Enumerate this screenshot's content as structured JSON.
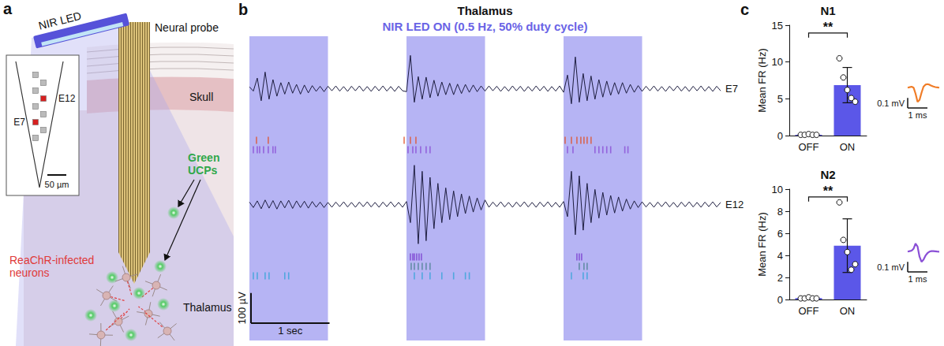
{
  "panel_a": {
    "letter": "a",
    "led": "NIR LED",
    "probe": "Neural probe",
    "skull": "Skull",
    "particles": "Green UCPs",
    "neurons": "ReaChR-infected neurons",
    "region": "Thalamus",
    "inset": {
      "upper_electrode": "E12",
      "lower_electrode": "E7",
      "scale_bar": "50 µm"
    }
  },
  "chart_data": [
    {
      "type": "line",
      "letter": "b",
      "title": "Thalamus",
      "subtitle": "NIR LED ON (0.5 Hz, 50% duty cycle)",
      "xlim": [
        0,
        6
      ],
      "ylim": [
        -150,
        150
      ],
      "tick_labels": false,
      "x": [
        0,
        0.05,
        0.1,
        0.15,
        0.2,
        0.25,
        0.3,
        0.35,
        0.4,
        0.45,
        0.5,
        0.55,
        0.6,
        0.65,
        0.7,
        0.75,
        0.8,
        0.85,
        0.9,
        0.95,
        1,
        1.05,
        1.1,
        1.15,
        1.2,
        1.25,
        1.3,
        1.35,
        1.4,
        1.45,
        1.5,
        1.55,
        1.6,
        1.65,
        1.7,
        1.75,
        1.8,
        1.85,
        1.9,
        1.95,
        2,
        2.05,
        2.1,
        2.15,
        2.2,
        2.25,
        2.3,
        2.35,
        2.4,
        2.45,
        2.5,
        2.55,
        2.6,
        2.65,
        2.7,
        2.75,
        2.8,
        2.85,
        2.9,
        2.95,
        3,
        3.05,
        3.1,
        3.15,
        3.2,
        3.25,
        3.3,
        3.35,
        3.4,
        3.45,
        3.5,
        3.55,
        3.6,
        3.65,
        3.7,
        3.75,
        3.8,
        3.85,
        3.9,
        3.95,
        4,
        4.05,
        4.1,
        4.15,
        4.2,
        4.25,
        4.3,
        4.35,
        4.4,
        4.45,
        4.5,
        4.55,
        4.6,
        4.65,
        4.7,
        4.75,
        4.8,
        4.85,
        4.9,
        4.95,
        5,
        5.05,
        5.1,
        5.15,
        5.2,
        5.25,
        5.3,
        5.35,
        5.4,
        5.45,
        5.5,
        5.55,
        5.6,
        5.65,
        5.7,
        5.75,
        5.8,
        5.85,
        5.9,
        5.95,
        6
      ],
      "series": [
        {
          "name": "E7",
          "color": "#1d1d3f",
          "values": [
            6,
            -8,
            35,
            -40,
            55,
            -35,
            30,
            -25,
            20,
            -18,
            22,
            -15,
            14,
            -18,
            12,
            -14,
            10,
            -9,
            8,
            -10,
            8,
            -7,
            9,
            -8,
            7,
            -9,
            8,
            -7,
            9,
            -8,
            7,
            -9,
            8,
            -7,
            9,
            -8,
            7,
            -9,
            8,
            -7,
            -10,
            110,
            -45,
            40,
            -35,
            38,
            -30,
            28,
            -25,
            22,
            -20,
            18,
            -20,
            15,
            -16,
            14,
            -12,
            12,
            -10,
            9,
            -8,
            9,
            -7,
            8,
            -9,
            7,
            -8,
            9,
            -7,
            8,
            -9,
            7,
            -8,
            9,
            -7,
            8,
            -9,
            7,
            -8,
            9,
            -12,
            45,
            -50,
            105,
            -45,
            50,
            -40,
            42,
            -35,
            30,
            -28,
            25,
            -22,
            20,
            -18,
            20,
            -15,
            14,
            -12,
            10,
            -9,
            8,
            -7,
            9,
            -8,
            7,
            -9,
            8,
            -7,
            9,
            -8,
            7,
            -9,
            8,
            -7,
            9,
            -8,
            7,
            -9,
            8,
            -7
          ]
        },
        {
          "name": "E12",
          "color": "#1d1d3f",
          "values": [
            8,
            -10,
            12,
            -14,
            15,
            -12,
            13,
            -15,
            12,
            -11,
            14,
            -13,
            12,
            -10,
            11,
            -12,
            10,
            -9,
            8,
            -10,
            7,
            -9,
            8,
            -7,
            9,
            -8,
            7,
            -9,
            8,
            -7,
            9,
            -8,
            7,
            -9,
            8,
            -7,
            9,
            -8,
            7,
            -9,
            10,
            -60,
            130,
            -130,
            110,
            -120,
            90,
            -80,
            70,
            -60,
            55,
            -50,
            45,
            -40,
            35,
            -30,
            28,
            -25,
            22,
            -18,
            15,
            -9,
            8,
            -7,
            9,
            -8,
            7,
            -9,
            8,
            -7,
            9,
            -8,
            7,
            -9,
            8,
            -7,
            9,
            -8,
            7,
            -9,
            10,
            -40,
            110,
            -100,
            95,
            -85,
            70,
            -60,
            50,
            -45,
            40,
            -35,
            30,
            -28,
            25,
            -22,
            18,
            -15,
            12,
            -10,
            9,
            -8,
            7,
            -9,
            8,
            -7,
            9,
            -8,
            7,
            -9,
            8,
            -7,
            9,
            -8,
            7,
            -9,
            8,
            -7,
            9,
            -8,
            7
          ]
        }
      ],
      "stimulus_windows": {
        "color": "#b6b4f4",
        "ranges": [
          [
            0,
            1
          ],
          [
            2,
            3
          ],
          [
            4,
            5
          ]
        ]
      },
      "raster": [
        {
          "electrode": "E7",
          "color": "#e0532b",
          "times": [
            0.09,
            0.24,
            1.97,
            2.05,
            2.12,
            4.02,
            4.1,
            4.17,
            4.22,
            4.26,
            4.3,
            4.35
          ]
        },
        {
          "electrode": "E7",
          "color": "#8b4fd6",
          "times": [
            0.05,
            0.1,
            0.13,
            0.18,
            0.24,
            0.3,
            0.33,
            2.02,
            2.08,
            2.12,
            2.18,
            2.25,
            2.3,
            4.05,
            4.12,
            4.4,
            4.45,
            4.5,
            4.55,
            4.6,
            4.78,
            4.82
          ]
        },
        {
          "electrode": "E12",
          "color": "#7b3fd0",
          "times": [
            2.05,
            2.08,
            2.1,
            2.13,
            2.16,
            2.19,
            4.17,
            4.2,
            4.23
          ]
        },
        {
          "electrode": "E12",
          "color": "#4f8293",
          "times": [
            2.06,
            2.1,
            2.15,
            2.2,
            2.25,
            2.3,
            4.2,
            4.26,
            4.3
          ]
        },
        {
          "electrode": "E12",
          "color": "#37a4d8",
          "times": [
            0.05,
            0.1,
            0.2,
            0.25,
            0.45,
            0.5,
            2.1,
            2.2,
            2.3,
            2.45,
            2.6,
            2.75,
            2.8,
            4.1,
            4.25,
            4.3
          ]
        }
      ],
      "scale_bars": {
        "x": {
          "value": 1,
          "label": "1 sec"
        },
        "y": {
          "value": 100,
          "label": "100 µV"
        }
      }
    },
    {
      "type": "bar",
      "letter": "c",
      "title": "N1",
      "categories": [
        "OFF",
        "ON"
      ],
      "values": [
        0.12,
        6.86
      ],
      "errors": [
        0.04,
        2.4
      ],
      "points": [
        [
          0.1,
          0.1,
          0.2,
          0.1,
          0.1
        ],
        [
          10.5,
          7.9,
          6.2,
          5.1,
          4.6
        ]
      ],
      "color": "#5b57e8",
      "y_label": "Mean FR (Hz)",
      "ylim": [
        0,
        15
      ],
      "yticks": [
        0,
        5,
        10,
        15
      ],
      "grid": false,
      "significance": {
        "label": "**",
        "between": [
          "OFF",
          "ON"
        ]
      },
      "waveform": {
        "color": "#f07d28",
        "x": [
          0,
          0.1,
          0.2,
          0.3,
          0.4,
          0.5,
          0.6,
          0.7,
          0.8,
          0.9,
          1,
          1.1,
          1.2,
          1.3,
          1.4,
          1.5,
          1.6
        ],
        "values": [
          0,
          0.005,
          0.01,
          0,
          -0.06,
          -0.14,
          -0.12,
          -0.05,
          0.01,
          0.03,
          0.035,
          0.03,
          0.02,
          0.012,
          0.006,
          0.003,
          0
        ],
        "xlim": [
          0,
          1.6
        ],
        "ylim": [
          -0.2,
          0.15
        ],
        "scale_bars": {
          "x": {
            "value": 1,
            "label": "1 ms"
          },
          "y": {
            "value": 0.1,
            "label": "0.1 mV"
          }
        }
      }
    },
    {
      "type": "bar",
      "title": "N2",
      "categories": [
        "OFF",
        "ON"
      ],
      "values": [
        0.12,
        4.88
      ],
      "errors": [
        0.04,
        2.43
      ],
      "points": [
        [
          0.1,
          0.1,
          0.2,
          0.1,
          0.1
        ],
        [
          8.8,
          5.4,
          4.3,
          2.7,
          3.2
        ]
      ],
      "color": "#5b57e8",
      "y_label": "Mean FR (Hz)",
      "ylim": [
        0,
        10
      ],
      "yticks": [
        0,
        2,
        4,
        6,
        8,
        10
      ],
      "grid": false,
      "significance": {
        "label": "**",
        "between": [
          "OFF",
          "ON"
        ]
      },
      "waveform": {
        "color": "#8a4fd6",
        "x": [
          0,
          0.1,
          0.2,
          0.3,
          0.4,
          0.5,
          0.6,
          0.7,
          0.8,
          0.9,
          1,
          1.1,
          1.2,
          1.3,
          1.4,
          1.5,
          1.6
        ],
        "values": [
          0,
          0.005,
          0.01,
          0.03,
          0.08,
          0.05,
          -0.05,
          -0.1,
          -0.08,
          -0.04,
          -0.015,
          0,
          0.005,
          0.005,
          0.003,
          0.001,
          0
        ],
        "xlim": [
          0,
          1.6
        ],
        "ylim": [
          -0.2,
          0.15
        ],
        "scale_bars": {
          "x": {
            "value": 1,
            "label": "1 ms"
          },
          "y": {
            "value": 0.1,
            "label": "0.1 mV"
          }
        }
      }
    }
  ]
}
